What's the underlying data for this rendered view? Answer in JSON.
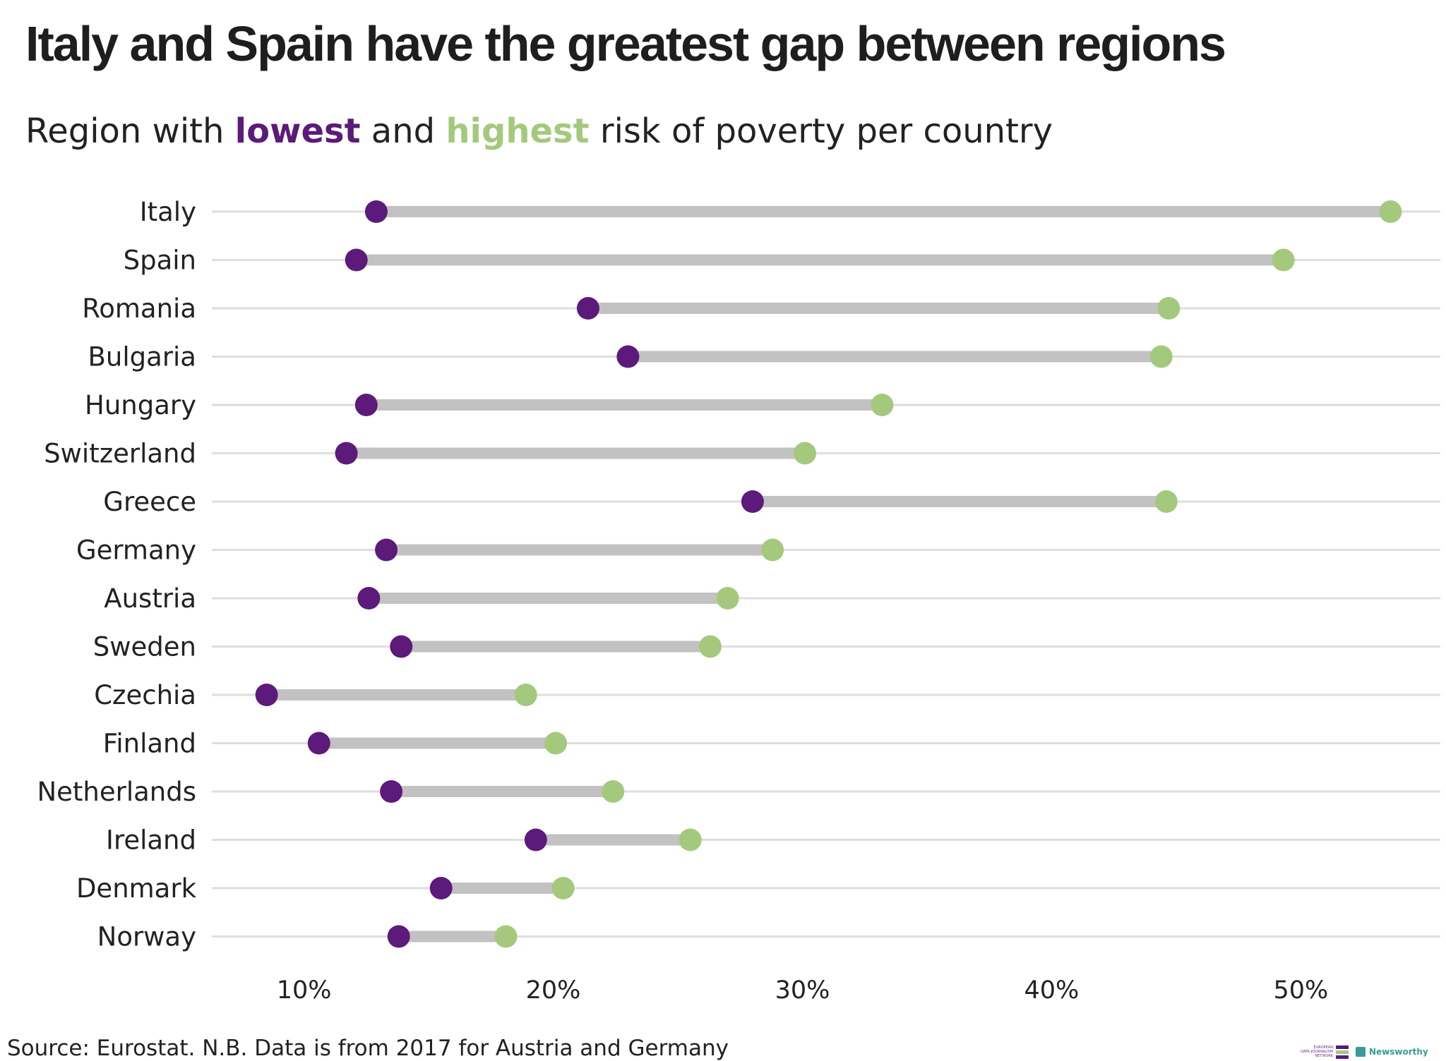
{
  "title": "Italy and Spain have the greatest gap between regions",
  "subtitle": {
    "prefix": "Region with ",
    "low_word": "lowest",
    "middle": " and ",
    "high_word": "highest",
    "suffix": " risk of poverty per country"
  },
  "source": "Source: Eurostat. N.B. Data is from 2017 for Austria and Germany",
  "logos": {
    "edjnet_lines": [
      "EUROPEAN",
      "DATA JOURNALISM",
      "NETWORK"
    ],
    "newsworthy": "Newsworthy"
  },
  "colors": {
    "lowest": "#5c1a7a",
    "highest": "#a4c97d",
    "range_bar": "#c2c2c2",
    "gridline": "#dedede"
  },
  "chart_data": {
    "type": "dumbbell",
    "xlim": [
      0.063,
      0.556
    ],
    "x_ticks": [
      0.1,
      0.2,
      0.3,
      0.4,
      0.5
    ],
    "x_tick_labels": [
      "10%",
      "20%",
      "30%",
      "40%",
      "50%"
    ],
    "categories": [
      "Italy",
      "Spain",
      "Romania",
      "Bulgaria",
      "Hungary",
      "Switzerland",
      "Greece",
      "Germany",
      "Austria",
      "Sweden",
      "Czechia",
      "Finland",
      "Netherlands",
      "Ireland",
      "Denmark",
      "Norway"
    ],
    "series": [
      {
        "name": "lowest",
        "values": [
          0.129,
          0.121,
          0.214,
          0.23,
          0.125,
          0.117,
          0.28,
          0.133,
          0.126,
          0.139,
          0.085,
          0.106,
          0.135,
          0.193,
          0.155,
          0.138
        ]
      },
      {
        "name": "highest",
        "values": [
          0.536,
          0.493,
          0.447,
          0.444,
          0.332,
          0.301,
          0.446,
          0.288,
          0.27,
          0.263,
          0.189,
          0.201,
          0.224,
          0.255,
          0.204,
          0.181
        ]
      }
    ],
    "grid": "horizontal"
  }
}
